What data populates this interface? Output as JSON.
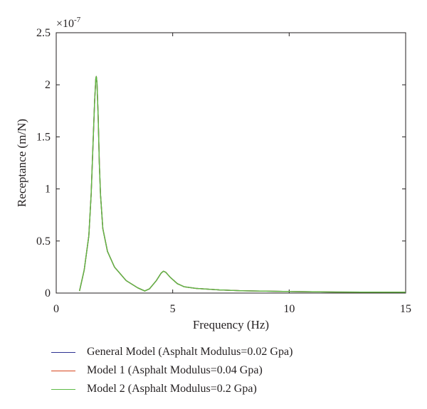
{
  "chart_data": {
    "type": "line",
    "xlabel": "Frequency (Hz)",
    "ylabel": "Receptance (m/N)",
    "xlim": [
      0,
      15
    ],
    "ylim": [
      0,
      2.5e-07
    ],
    "x_ticks": [
      "0",
      "5",
      "10",
      "15"
    ],
    "y_ticks": [
      "0",
      "0.5",
      "1",
      "1.5",
      "2",
      "2.5"
    ],
    "y_scale_base": "×10",
    "y_scale_exponent": "-7",
    "grid": false,
    "legend_placement": "below",
    "series": [
      {
        "name": "General Model (Asphalt Modulus=0.02 Gpa)",
        "color": "#2e3192",
        "x": [
          1.0,
          1.2,
          1.4,
          1.5,
          1.6,
          1.65,
          1.7,
          1.72,
          1.75,
          1.8,
          1.85,
          1.9,
          2.0,
          2.2,
          2.5,
          3.0,
          3.5,
          3.8,
          4.0,
          4.3,
          4.5,
          4.6,
          4.7,
          4.9,
          5.2,
          5.5,
          6.0,
          7.0,
          8.0,
          10.0,
          12.0,
          15.0
        ],
        "y": [
          2e-09,
          2.2e-08,
          5.5e-08,
          9.5e-08,
          1.55e-07,
          1.85e-07,
          2.06e-07,
          2.08e-07,
          2.02e-07,
          1.7e-07,
          1.25e-07,
          9.5e-08,
          6.2e-08,
          4e-08,
          2.5e-08,
          1.2e-08,
          5e-09,
          2e-09,
          4e-09,
          1.2e-08,
          1.9e-08,
          2.1e-08,
          2e-08,
          1.5e-08,
          9e-09,
          6e-09,
          4.5e-09,
          3e-09,
          2.2e-09,
          1.5e-09,
          1e-09,
          8e-10
        ]
      },
      {
        "name": "Model 1 (Asphalt Modulus=0.04 Gpa)",
        "color": "#d8461e",
        "x": [
          1.0,
          1.2,
          1.4,
          1.5,
          1.6,
          1.65,
          1.7,
          1.72,
          1.75,
          1.8,
          1.85,
          1.9,
          2.0,
          2.2,
          2.5,
          3.0,
          3.5,
          3.8,
          4.0,
          4.3,
          4.5,
          4.6,
          4.7,
          4.9,
          5.2,
          5.5,
          6.0,
          7.0,
          8.0,
          10.0,
          12.0,
          15.0
        ],
        "y": [
          2e-09,
          2.2e-08,
          5.5e-08,
          9.5e-08,
          1.55e-07,
          1.85e-07,
          2.06e-07,
          2.08e-07,
          2.02e-07,
          1.7e-07,
          1.25e-07,
          9.5e-08,
          6.2e-08,
          4e-08,
          2.5e-08,
          1.2e-08,
          5e-09,
          2e-09,
          4e-09,
          1.2e-08,
          1.9e-08,
          2.1e-08,
          2e-08,
          1.5e-08,
          9e-09,
          6e-09,
          4.5e-09,
          3e-09,
          2.2e-09,
          1.5e-09,
          1e-09,
          8e-10
        ]
      },
      {
        "name": "Model 2 (Asphalt Modulus=0.2 Gpa)",
        "color": "#5dbb46",
        "x": [
          1.0,
          1.2,
          1.4,
          1.5,
          1.6,
          1.65,
          1.7,
          1.72,
          1.75,
          1.8,
          1.85,
          1.9,
          2.0,
          2.2,
          2.5,
          3.0,
          3.5,
          3.8,
          4.0,
          4.3,
          4.5,
          4.6,
          4.7,
          4.9,
          5.2,
          5.5,
          6.0,
          7.0,
          8.0,
          10.0,
          12.0,
          15.0
        ],
        "y": [
          2e-09,
          2.2e-08,
          5.5e-08,
          9.5e-08,
          1.55e-07,
          1.85e-07,
          2.06e-07,
          2.08e-07,
          2.02e-07,
          1.7e-07,
          1.25e-07,
          9.5e-08,
          6.2e-08,
          4e-08,
          2.5e-08,
          1.2e-08,
          5e-09,
          2e-09,
          4e-09,
          1.2e-08,
          1.9e-08,
          2.1e-08,
          2e-08,
          1.5e-08,
          9e-09,
          6e-09,
          4.5e-09,
          3e-09,
          2.2e-09,
          1.5e-09,
          1e-09,
          8e-10
        ]
      }
    ]
  }
}
